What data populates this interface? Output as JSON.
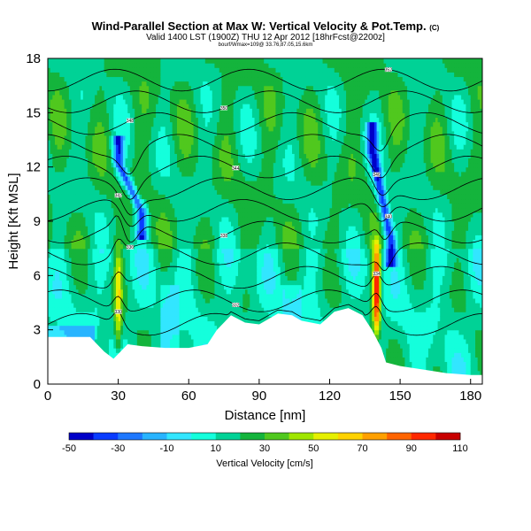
{
  "header": {
    "title": "Wind-Parallel Section at Max W: Vertical Velocity & Pot.Temp.",
    "copyright": "(C)",
    "valid": "Valid 1400 LST (1900Z) THU 12 Apr 2012 [18hrFcst@2200z]",
    "small": "bourf/Wmax=109@ 33.76,87.05,15.6km"
  },
  "chart_data": {
    "type": "heatmap",
    "title": "Wind-Parallel Section at Max W: Vertical Velocity & Pot.Temp.",
    "xlabel": "Distance [nm]",
    "ylabel": "Height [Kft MSL]",
    "xlim": [
      0,
      185
    ],
    "ylim": [
      0,
      18
    ],
    "x_ticks": [
      0,
      30,
      60,
      90,
      120,
      150,
      180
    ],
    "y_ticks": [
      0,
      3,
      6,
      9,
      12,
      15,
      18
    ],
    "colorbar": {
      "label": "Vertical Velocity [cm/s]",
      "labels": [
        "-50",
        "-30",
        "-10",
        "10",
        "30",
        "50",
        "70",
        "90",
        "110"
      ],
      "bounds": [
        -50,
        -40,
        -30,
        -20,
        -10,
        0,
        10,
        20,
        30,
        40,
        50,
        60,
        70,
        80,
        90,
        100,
        110
      ],
      "colors": [
        "#0000c8",
        "#0a3cff",
        "#1e78ff",
        "#28b4ff",
        "#32e6ff",
        "#14ffdc",
        "#00d296",
        "#14b43c",
        "#50c81e",
        "#a0e600",
        "#e6f000",
        "#ffd200",
        "#ffa000",
        "#ff6400",
        "#ff2800",
        "#c80000"
      ]
    },
    "terrain": [
      [
        0,
        2.6
      ],
      [
        8,
        2.6
      ],
      [
        18,
        2.6
      ],
      [
        24,
        1.8
      ],
      [
        28,
        1.4
      ],
      [
        31,
        1.8
      ],
      [
        34,
        2.2
      ],
      [
        40,
        2.1
      ],
      [
        50,
        2.0
      ],
      [
        60,
        2.0
      ],
      [
        68,
        2.2
      ],
      [
        72,
        3.0
      ],
      [
        78,
        3.8
      ],
      [
        84,
        3.4
      ],
      [
        90,
        3.3
      ],
      [
        98,
        3.9
      ],
      [
        104,
        3.8
      ],
      [
        108,
        3.5
      ],
      [
        116,
        3.3
      ],
      [
        122,
        4.0
      ],
      [
        128,
        4.2
      ],
      [
        134,
        3.8
      ],
      [
        138,
        3.0
      ],
      [
        142,
        2.0
      ],
      [
        144,
        1.2
      ],
      [
        150,
        1.0
      ],
      [
        160,
        0.8
      ],
      [
        170,
        0.6
      ],
      [
        180,
        0.5
      ],
      [
        185,
        0.5
      ]
    ],
    "updrafts": [
      {
        "x": 30,
        "zmin": 1.5,
        "zmax": 8.0,
        "wmax": 60
      },
      {
        "x": 140,
        "zmin": 2.5,
        "zmax": 8.0,
        "wmax": 109
      }
    ],
    "downdrafts": [
      {
        "x1": 30,
        "z1": 12.2,
        "x2": 40,
        "z2": 9.6,
        "wmin": -40
      },
      {
        "x1": 138,
        "z1": 13.0,
        "x2": 146,
        "z2": 8.0,
        "wmin": -45
      }
    ],
    "isentropes": [
      {
        "label": "330",
        "base": 3.3
      },
      {
        "label": "332",
        "base": 4.6
      },
      {
        "label": "334",
        "base": 5.9
      },
      {
        "label": "336",
        "base": 7.2
      },
      {
        "label": "338",
        "base": 8.4
      },
      {
        "label": "340",
        "base": 9.6
      },
      {
        "label": "342",
        "base": 10.8
      },
      {
        "label": "344",
        "base": 12.0
      },
      {
        "label": "346",
        "base": 13.2
      },
      {
        "label": "348",
        "base": 14.4
      },
      {
        "label": "350",
        "base": 15.6
      },
      {
        "label": "352",
        "base": 16.8
      }
    ]
  }
}
